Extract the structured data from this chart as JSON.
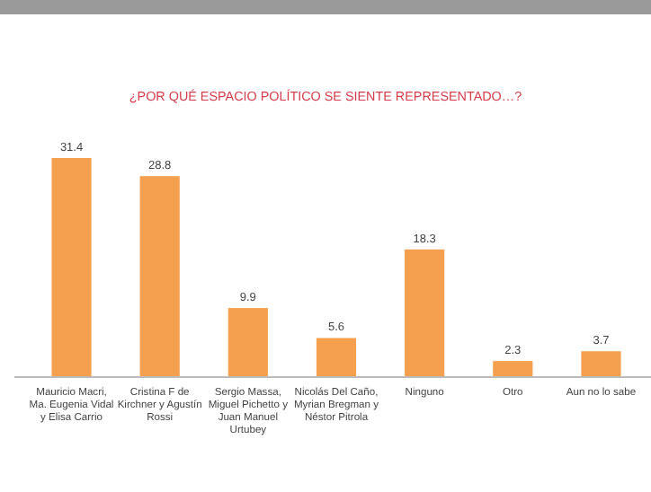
{
  "chart_data": {
    "type": "bar",
    "title": "¿POR QUÉ ESPACIO POLÍTICO SE SIENTE REPRESENTADO…?",
    "categories": [
      "Mauricio Macri, Ma. Eugenia Vidal y Elisa Carrio",
      "Cristina F de Kirchner y Agustín Rossi",
      "Sergio Massa, Miguel Pichetto y Juan Manuel Urtubey",
      "Nicolás Del Caño, Myrian Bregman y Néstor Pitrola",
      "Ninguno",
      "Otro",
      "Aun no lo sabe"
    ],
    "values": [
      31.4,
      28.8,
      9.9,
      5.6,
      18.3,
      2.3,
      3.7
    ],
    "color": "#f5a04e",
    "data_labels": true
  }
}
